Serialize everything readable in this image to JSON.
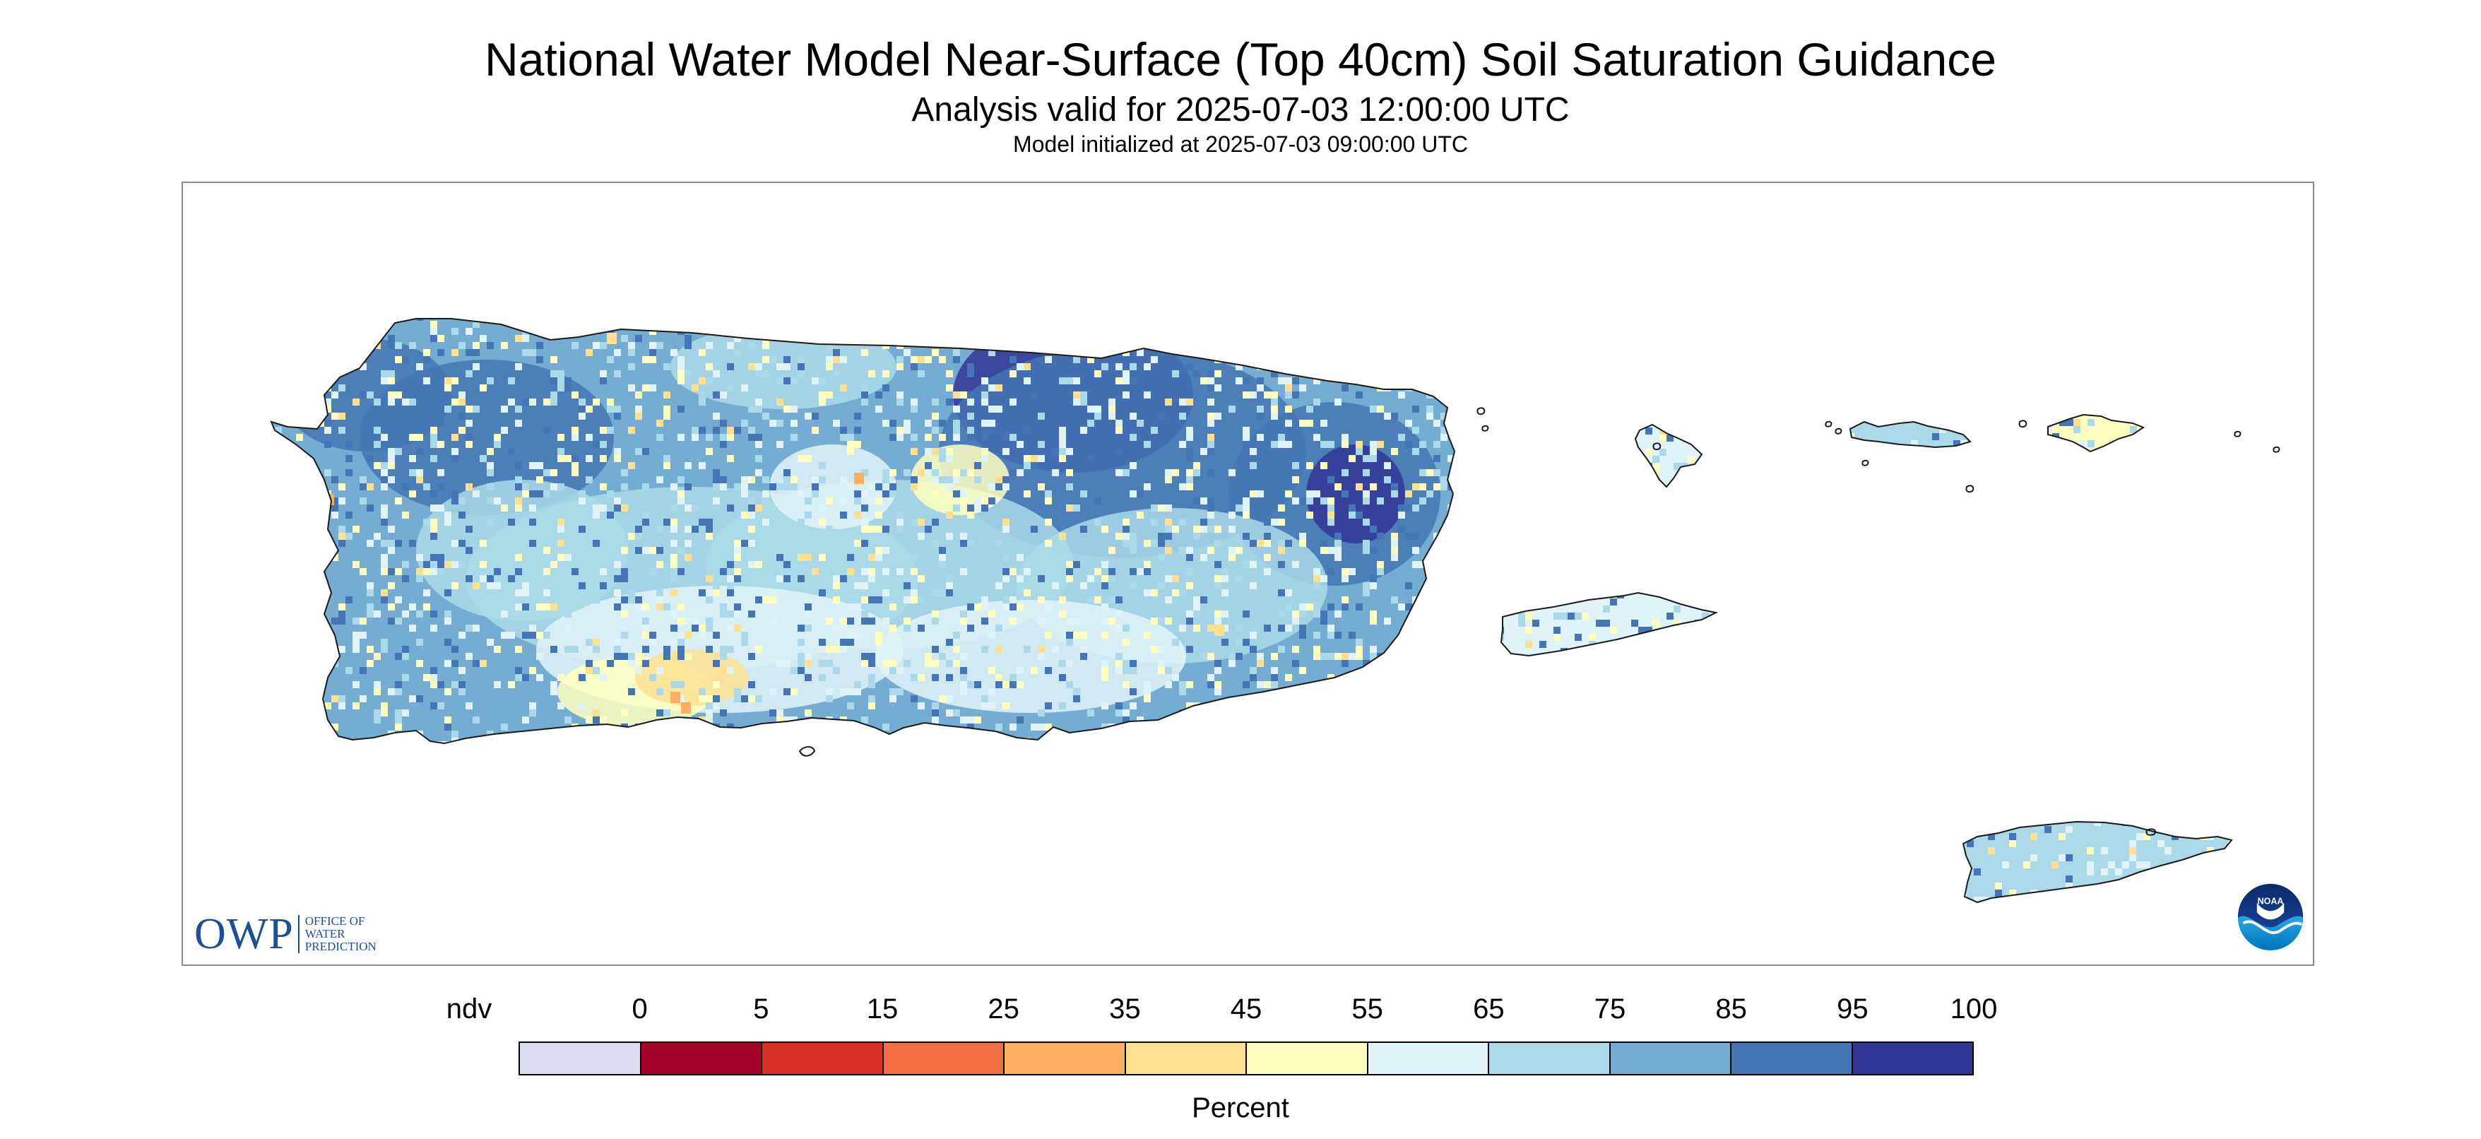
{
  "header": {
    "title": "National Water Model Near-Surface (Top 40cm) Soil Saturation Guidance",
    "subtitle": "Analysis valid for 2025-07-03 12:00:00 UTC",
    "init_line": "Model initialized at 2025-07-03 09:00:00 UTC"
  },
  "logos": {
    "owp_letters": "OWP",
    "owp_line1": "OFFICE OF",
    "owp_line2": "WATER",
    "owp_line3": "PREDICTION",
    "noaa_text": "NOAA"
  },
  "legend": {
    "title": "Percent",
    "labels": [
      "ndv",
      "0",
      "5",
      "15",
      "25",
      "35",
      "45",
      "55",
      "65",
      "75",
      "85",
      "95",
      "100"
    ],
    "colors": [
      "#dcdcf0",
      "#a50026",
      "#d73027",
      "#f46d43",
      "#fdae61",
      "#fee090",
      "#ffffbf",
      "#e0f3f8",
      "#abd9e9",
      "#74add1",
      "#4575b4",
      "#313695"
    ]
  },
  "map": {
    "regions": [
      "Puerto Rico",
      "Vieques",
      "Culebra",
      "St. Thomas",
      "St. John",
      "St. Croix",
      "Mona Island"
    ],
    "colors": {
      "outline": "#1a1a1a",
      "dominant": "#74add1",
      "wet": "#4575b4",
      "very_wet": "#313695",
      "moist": "#abd9e9",
      "moderate": "#e0f3f8",
      "dry": "#ffffbf",
      "drier": "#fee090",
      "driest": "#fdae61",
      "frame": "#8c8c8c"
    }
  }
}
